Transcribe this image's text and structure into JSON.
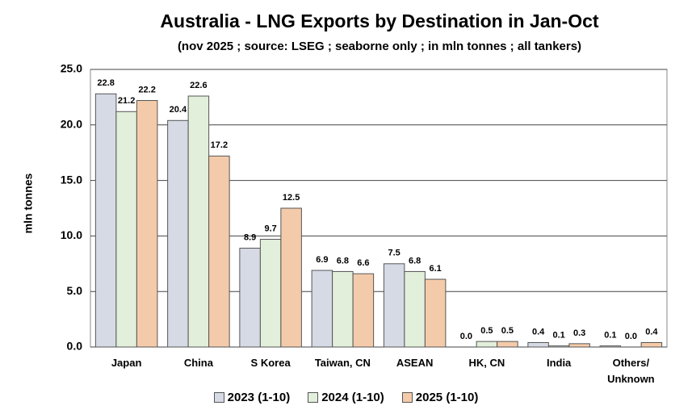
{
  "chart_data": {
    "type": "bar",
    "title": "Australia - LNG Exports by Destination in Jan-Oct",
    "subtitle": "(nov 2025 ; source: LSEG ; seaborne only ; in mln tonnes ; all tankers)",
    "y_label": "mln tonnes",
    "categories": [
      "Japan",
      "China",
      "S Korea",
      "Taiwan, CN",
      "ASEAN",
      "HK, CN",
      "India",
      "Others/ Unknown"
    ],
    "series": [
      {
        "name": "2023 (1-10)",
        "color": "#d6dae5",
        "values": [
          22.8,
          20.4,
          8.9,
          6.9,
          7.5,
          0.0,
          0.4,
          0.1
        ],
        "value_labels": [
          "22.8",
          "20.4",
          "8.9",
          "6.9",
          "7.5",
          "0.0",
          "0.4",
          "0.1"
        ]
      },
      {
        "name": "2024 (1-10)",
        "color": "#e2efda",
        "values": [
          21.2,
          22.6,
          9.7,
          6.8,
          6.8,
          0.5,
          0.1,
          0.0
        ],
        "value_labels": [
          "21.2",
          "22.6",
          "9.7",
          "6.8",
          "6.8",
          "0.5",
          "0.1",
          "0.0"
        ]
      },
      {
        "name": "2025 (1-10)",
        "color": "#f4cbaa",
        "values": [
          22.2,
          17.2,
          12.5,
          6.6,
          6.1,
          0.5,
          0.3,
          0.4
        ],
        "value_labels": [
          "22.2",
          "17.2",
          "12.5",
          "6.6",
          "6.1",
          "0.5",
          "0.3",
          "0.4"
        ]
      }
    ],
    "ylim": [
      0,
      25
    ],
    "yticks": [
      {
        "value": 0,
        "label": "0.0"
      },
      {
        "value": 5,
        "label": "5.0"
      },
      {
        "value": 10,
        "label": "10.0"
      },
      {
        "value": 15,
        "label": "15.0"
      },
      {
        "value": 20,
        "label": "20.0"
      },
      {
        "value": 25,
        "label": "25.0"
      }
    ],
    "grid": true
  }
}
